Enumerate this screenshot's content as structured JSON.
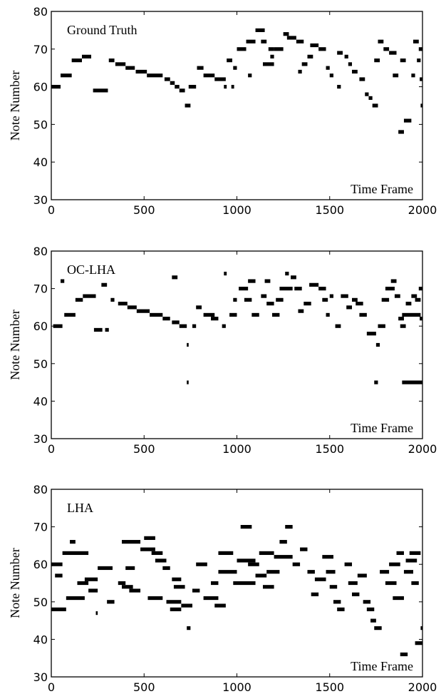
{
  "chart_data": [
    {
      "type": "scatter",
      "title": "Ground Truth",
      "xlabel": "Time Frame",
      "ylabel": "Note Number",
      "xlim": [
        0,
        2000
      ],
      "ylim": [
        30,
        80
      ],
      "xticks": [
        0,
        500,
        1000,
        1500,
        2000
      ],
      "yticks": [
        30,
        40,
        50,
        60,
        70,
        80
      ],
      "notes": [
        [
          0,
          50,
          60
        ],
        [
          50,
          110,
          63
        ],
        [
          110,
          165,
          67
        ],
        [
          165,
          215,
          68
        ],
        [
          225,
          305,
          59
        ],
        [
          310,
          340,
          67
        ],
        [
          345,
          400,
          66
        ],
        [
          400,
          450,
          65
        ],
        [
          455,
          515,
          64
        ],
        [
          515,
          600,
          63
        ],
        [
          610,
          640,
          62
        ],
        [
          640,
          665,
          61
        ],
        [
          665,
          690,
          60
        ],
        [
          690,
          720,
          59
        ],
        [
          720,
          750,
          55
        ],
        [
          740,
          780,
          60
        ],
        [
          785,
          820,
          65
        ],
        [
          820,
          880,
          63
        ],
        [
          880,
          940,
          62
        ],
        [
          930,
          945,
          60
        ],
        [
          945,
          975,
          67
        ],
        [
          970,
          985,
          60
        ],
        [
          980,
          1000,
          65
        ],
        [
          1000,
          1050,
          70
        ],
        [
          1050,
          1100,
          72
        ],
        [
          1060,
          1080,
          63
        ],
        [
          1100,
          1150,
          75
        ],
        [
          1130,
          1160,
          72
        ],
        [
          1140,
          1200,
          66
        ],
        [
          1170,
          1200,
          70
        ],
        [
          1180,
          1200,
          68
        ],
        [
          1200,
          1250,
          70
        ],
        [
          1250,
          1280,
          74
        ],
        [
          1270,
          1320,
          73
        ],
        [
          1320,
          1360,
          72
        ],
        [
          1330,
          1350,
          64
        ],
        [
          1350,
          1380,
          66
        ],
        [
          1380,
          1410,
          68
        ],
        [
          1395,
          1440,
          71
        ],
        [
          1440,
          1480,
          70
        ],
        [
          1480,
          1500,
          65
        ],
        [
          1500,
          1520,
          63
        ],
        [
          1540,
          1560,
          60
        ],
        [
          1540,
          1570,
          69
        ],
        [
          1580,
          1600,
          68
        ],
        [
          1600,
          1620,
          66
        ],
        [
          1620,
          1650,
          64
        ],
        [
          1660,
          1690,
          62
        ],
        [
          1690,
          1710,
          58
        ],
        [
          1710,
          1730,
          57
        ],
        [
          1730,
          1760,
          55
        ],
        [
          1740,
          1770,
          67
        ],
        [
          1760,
          1790,
          72
        ],
        [
          1790,
          1820,
          70
        ],
        [
          1820,
          1860,
          69
        ],
        [
          1840,
          1870,
          63
        ],
        [
          1870,
          1900,
          48
        ],
        [
          1880,
          1910,
          67
        ],
        [
          1900,
          1940,
          51
        ],
        [
          1940,
          1960,
          63
        ],
        [
          1950,
          1980,
          72
        ],
        [
          1970,
          1990,
          67
        ],
        [
          1980,
          2000,
          70
        ],
        [
          1985,
          2000,
          62
        ],
        [
          1990,
          2000,
          55
        ]
      ]
    },
    {
      "type": "scatter",
      "title": "OC-LHA",
      "xlabel": "Time Frame",
      "ylabel": "Note Number",
      "xlim": [
        0,
        2000
      ],
      "ylim": [
        30,
        80
      ],
      "xticks": [
        0,
        500,
        1000,
        1500,
        2000
      ],
      "yticks": [
        30,
        40,
        50,
        60,
        70,
        80
      ],
      "notes": [
        [
          10,
          60,
          60
        ],
        [
          50,
          70,
          72
        ],
        [
          70,
          130,
          63
        ],
        [
          130,
          170,
          67
        ],
        [
          170,
          240,
          68
        ],
        [
          230,
          275,
          59
        ],
        [
          270,
          300,
          71
        ],
        [
          290,
          310,
          59
        ],
        [
          320,
          340,
          67
        ],
        [
          360,
          410,
          66
        ],
        [
          410,
          460,
          65
        ],
        [
          460,
          530,
          64
        ],
        [
          530,
          600,
          63
        ],
        [
          600,
          640,
          62
        ],
        [
          650,
          690,
          61
        ],
        [
          650,
          680,
          73
        ],
        [
          690,
          730,
          60
        ],
        [
          730,
          740,
          55
        ],
        [
          730,
          740,
          45
        ],
        [
          760,
          780,
          60
        ],
        [
          780,
          810,
          65
        ],
        [
          820,
          880,
          63
        ],
        [
          860,
          900,
          62
        ],
        [
          920,
          940,
          60
        ],
        [
          930,
          945,
          74
        ],
        [
          960,
          1000,
          63
        ],
        [
          980,
          1000,
          67
        ],
        [
          1010,
          1060,
          70
        ],
        [
          1040,
          1080,
          67
        ],
        [
          1060,
          1100,
          72
        ],
        [
          1080,
          1120,
          63
        ],
        [
          1130,
          1160,
          68
        ],
        [
          1150,
          1180,
          72
        ],
        [
          1160,
          1200,
          66
        ],
        [
          1190,
          1230,
          63
        ],
        [
          1210,
          1250,
          67
        ],
        [
          1230,
          1300,
          70
        ],
        [
          1260,
          1280,
          74
        ],
        [
          1290,
          1320,
          73
        ],
        [
          1310,
          1350,
          70
        ],
        [
          1330,
          1360,
          64
        ],
        [
          1360,
          1400,
          66
        ],
        [
          1390,
          1440,
          71
        ],
        [
          1440,
          1480,
          70
        ],
        [
          1460,
          1490,
          67
        ],
        [
          1480,
          1500,
          63
        ],
        [
          1500,
          1520,
          68
        ],
        [
          1530,
          1560,
          60
        ],
        [
          1560,
          1600,
          68
        ],
        [
          1590,
          1620,
          65
        ],
        [
          1620,
          1650,
          67
        ],
        [
          1640,
          1680,
          66
        ],
        [
          1660,
          1700,
          63
        ],
        [
          1700,
          1750,
          58
        ],
        [
          1750,
          1770,
          55
        ],
        [
          1740,
          1760,
          45
        ],
        [
          1760,
          1800,
          60
        ],
        [
          1780,
          1820,
          67
        ],
        [
          1800,
          1850,
          70
        ],
        [
          1830,
          1860,
          72
        ],
        [
          1850,
          1880,
          68
        ],
        [
          1870,
          1900,
          62
        ],
        [
          1880,
          1910,
          60
        ],
        [
          1890,
          1990,
          63
        ],
        [
          1890,
          2000,
          45
        ],
        [
          1910,
          1940,
          66
        ],
        [
          1940,
          1970,
          68
        ],
        [
          1960,
          1990,
          67
        ],
        [
          1980,
          2000,
          70
        ],
        [
          1985,
          2000,
          62
        ]
      ]
    },
    {
      "type": "scatter",
      "title": "LHA",
      "xlabel": "Time Frame",
      "ylabel": "Note Number",
      "xlim": [
        0,
        2000
      ],
      "ylim": [
        30,
        80
      ],
      "xticks": [
        0,
        500,
        1000,
        1500,
        2000
      ],
      "yticks": [
        30,
        40,
        50,
        60,
        70,
        80
      ],
      "notes": [
        [
          0,
          60,
          60
        ],
        [
          0,
          80,
          48
        ],
        [
          20,
          60,
          57
        ],
        [
          60,
          200,
          63
        ],
        [
          80,
          180,
          51
        ],
        [
          100,
          130,
          66
        ],
        [
          140,
          200,
          55
        ],
        [
          180,
          250,
          56
        ],
        [
          200,
          250,
          53
        ],
        [
          240,
          250,
          47
        ],
        [
          250,
          330,
          59
        ],
        [
          300,
          340,
          50
        ],
        [
          360,
          400,
          55
        ],
        [
          380,
          440,
          54
        ],
        [
          400,
          450,
          59
        ],
        [
          380,
          480,
          66
        ],
        [
          420,
          480,
          53
        ],
        [
          480,
          560,
          64
        ],
        [
          500,
          560,
          67
        ],
        [
          540,
          600,
          63
        ],
        [
          520,
          600,
          51
        ],
        [
          560,
          620,
          61
        ],
        [
          600,
          640,
          59
        ],
        [
          620,
          700,
          50
        ],
        [
          640,
          700,
          48
        ],
        [
          650,
          700,
          56
        ],
        [
          660,
          720,
          54
        ],
        [
          700,
          760,
          49
        ],
        [
          730,
          750,
          43
        ],
        [
          760,
          800,
          53
        ],
        [
          780,
          840,
          60
        ],
        [
          820,
          900,
          51
        ],
        [
          860,
          900,
          55
        ],
        [
          880,
          940,
          49
        ],
        [
          900,
          1000,
          58
        ],
        [
          900,
          980,
          63
        ],
        [
          980,
          1100,
          55
        ],
        [
          1000,
          1100,
          61
        ],
        [
          1020,
          1080,
          70
        ],
        [
          1060,
          1120,
          60
        ],
        [
          1100,
          1160,
          57
        ],
        [
          1120,
          1200,
          63
        ],
        [
          1140,
          1200,
          54
        ],
        [
          1160,
          1230,
          58
        ],
        [
          1200,
          1300,
          62
        ],
        [
          1230,
          1270,
          66
        ],
        [
          1260,
          1300,
          70
        ],
        [
          1300,
          1340,
          60
        ],
        [
          1340,
          1380,
          64
        ],
        [
          1380,
          1420,
          58
        ],
        [
          1400,
          1440,
          52
        ],
        [
          1420,
          1480,
          56
        ],
        [
          1460,
          1520,
          62
        ],
        [
          1480,
          1530,
          58
        ],
        [
          1500,
          1540,
          54
        ],
        [
          1520,
          1560,
          50
        ],
        [
          1540,
          1580,
          48
        ],
        [
          1580,
          1620,
          60
        ],
        [
          1600,
          1650,
          55
        ],
        [
          1620,
          1660,
          52
        ],
        [
          1650,
          1700,
          57
        ],
        [
          1680,
          1720,
          50
        ],
        [
          1700,
          1740,
          48
        ],
        [
          1720,
          1750,
          45
        ],
        [
          1740,
          1780,
          43
        ],
        [
          1770,
          1820,
          58
        ],
        [
          1800,
          1860,
          55
        ],
        [
          1820,
          1880,
          60
        ],
        [
          1840,
          1900,
          51
        ],
        [
          1860,
          1900,
          63
        ],
        [
          1880,
          1920,
          36
        ],
        [
          1900,
          1950,
          58
        ],
        [
          1910,
          1970,
          61
        ],
        [
          1930,
          1990,
          63
        ],
        [
          1940,
          1980,
          55
        ],
        [
          1960,
          2000,
          39
        ],
        [
          1990,
          2000,
          43
        ]
      ]
    }
  ]
}
